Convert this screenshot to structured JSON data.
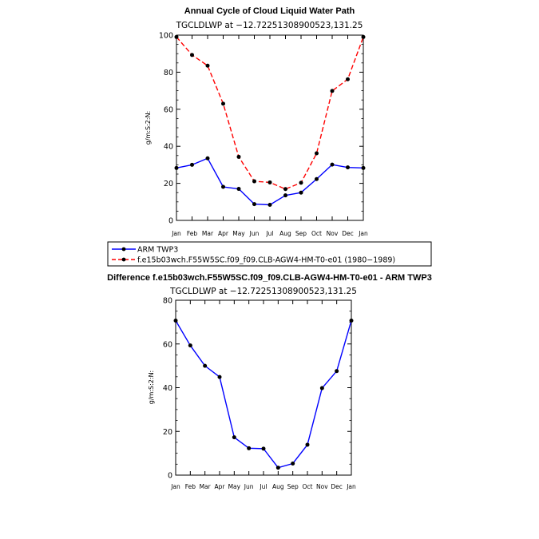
{
  "chart_data": [
    {
      "type": "line",
      "title": "Annual Cycle of Cloud Liquid Water Path",
      "subtitle": "TGCLDLWP  at  −12.72251308900523,131.25",
      "ylabel": "g/m:S:2:N:",
      "xlabel": "",
      "ylim": [
        0,
        100
      ],
      "yticks": [
        "0",
        "20",
        "40",
        "60",
        "80",
        "100"
      ],
      "categories": [
        "Jan",
        "Feb",
        "Mar",
        "Apr",
        "May",
        "Jun",
        "Jul",
        "Aug",
        "Sep",
        "Oct",
        "Nov",
        "Dec",
        "Jan"
      ],
      "series": [
        {
          "name": "ARM TWP3",
          "color": "#0000ff",
          "dashed": false,
          "values": [
            28.3,
            30.0,
            33.5,
            18.1,
            17.0,
            8.8,
            8.4,
            13.5,
            15.0,
            22.3,
            30.1,
            28.6,
            28.3
          ]
        },
        {
          "name": "f.e15b03wch.F55W5SC.f09_f09.CLB-AGW4-HM-T0-e01 (1980−1989)",
          "color": "#ff0000",
          "dashed": true,
          "values": [
            99.0,
            89.3,
            83.5,
            63.0,
            34.3,
            21.1,
            20.5,
            16.9,
            20.3,
            36.2,
            69.9,
            76.2,
            99.0
          ]
        }
      ],
      "legend": "below"
    },
    {
      "type": "line",
      "title": "Difference f.e15b03wch.F55W5SC.f09_f09.CLB-AGW4-HM-T0-e01 - ARM TWP3",
      "subtitle": "TGCLDLWP  at  −12.72251308900523,131.25",
      "ylabel": "g/m:S:2:N:",
      "xlabel": "",
      "ylim": [
        0,
        80
      ],
      "yticks": [
        "0",
        "20",
        "40",
        "60",
        "80"
      ],
      "categories": [
        "Jan",
        "Feb",
        "Mar",
        "Apr",
        "May",
        "Jun",
        "Jul",
        "Aug",
        "Sep",
        "Oct",
        "Nov",
        "Dec",
        "Jan"
      ],
      "series": [
        {
          "name": "Difference",
          "color": "#0000ff",
          "dashed": false,
          "values": [
            70.7,
            59.3,
            50.0,
            44.9,
            17.3,
            12.3,
            12.1,
            3.4,
            5.3,
            13.9,
            39.8,
            47.6,
            70.7
          ]
        }
      ]
    }
  ]
}
